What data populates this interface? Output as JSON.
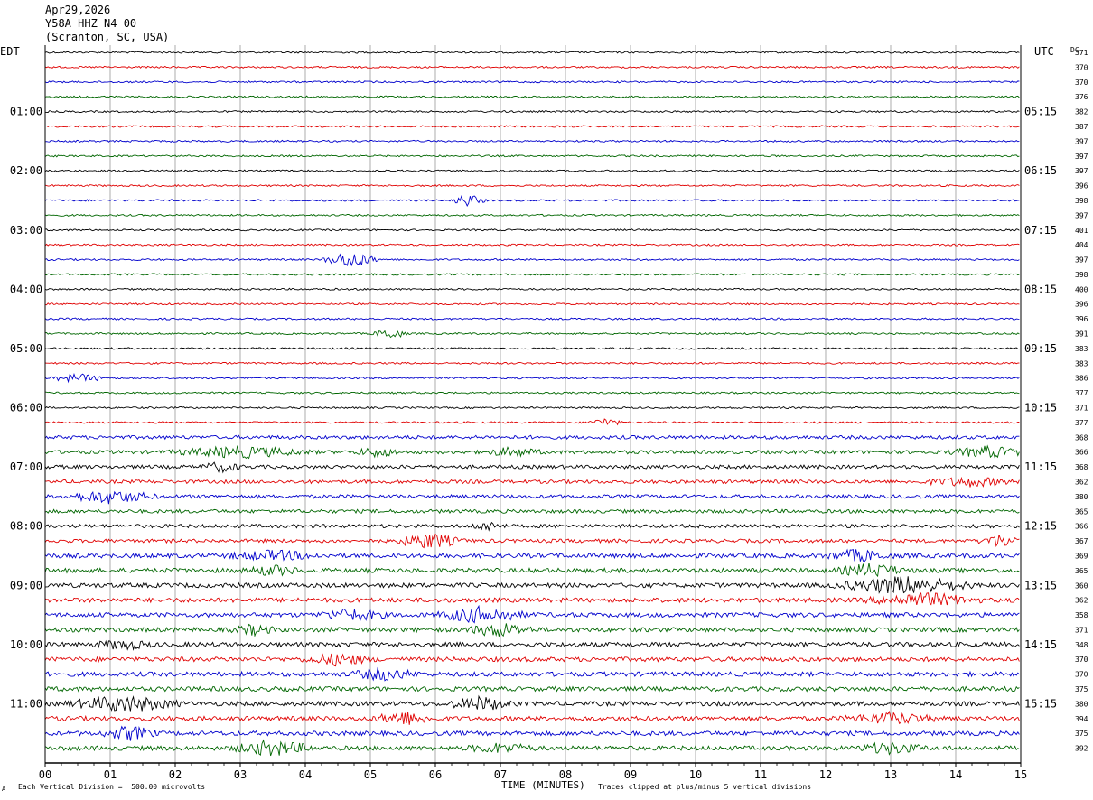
{
  "header": {
    "date": "Apr29,2026",
    "station": "Y58A HHZ N4 00",
    "location": "(Scranton, SC, USA)"
  },
  "labels": {
    "left_zone": "EDT",
    "right_zone": "UTC",
    "dc_header": "DC"
  },
  "chart_data": {
    "type": "line",
    "title": "",
    "xlabel": "TIME (MINUTES)",
    "xlim": [
      0,
      15
    ],
    "x_ticks": [
      "00",
      "01",
      "02",
      "03",
      "04",
      "05",
      "06",
      "07",
      "08",
      "09",
      "10",
      "11",
      "12",
      "13",
      "14",
      "15"
    ],
    "trace_colors": [
      "#000000",
      "#e00000",
      "#0000cc",
      "#006600"
    ],
    "trace_count": 48,
    "left_time_labels": [
      "01:00",
      "02:00",
      "03:00",
      "04:00",
      "05:00",
      "06:00",
      "07:00",
      "08:00",
      "09:00",
      "10:00",
      "11:00"
    ],
    "right_time_labels": [
      "05:15",
      "06:15",
      "07:15",
      "08:15",
      "09:15",
      "10:15",
      "11:15",
      "12:15",
      "13:15",
      "14:15",
      "15:15"
    ],
    "dc_offsets": [
      371,
      370,
      370,
      376,
      382,
      387,
      397,
      397,
      397,
      396,
      398,
      397,
      401,
      404,
      397,
      398,
      400,
      396,
      396,
      391,
      383,
      383,
      386,
      377,
      371,
      377,
      368,
      366,
      368,
      362,
      380,
      365,
      366,
      367,
      369,
      365,
      360,
      362,
      358,
      371,
      348,
      370,
      370,
      375,
      380,
      394,
      375,
      392
    ]
  },
  "footer": {
    "scale_note": "Each Vertical Division =  500.00 microvolts",
    "axis_title": "TIME (MINUTES)",
    "clip_note": "Traces clipped at plus/minus 5 vertical divisions",
    "corner_mark": "A"
  }
}
